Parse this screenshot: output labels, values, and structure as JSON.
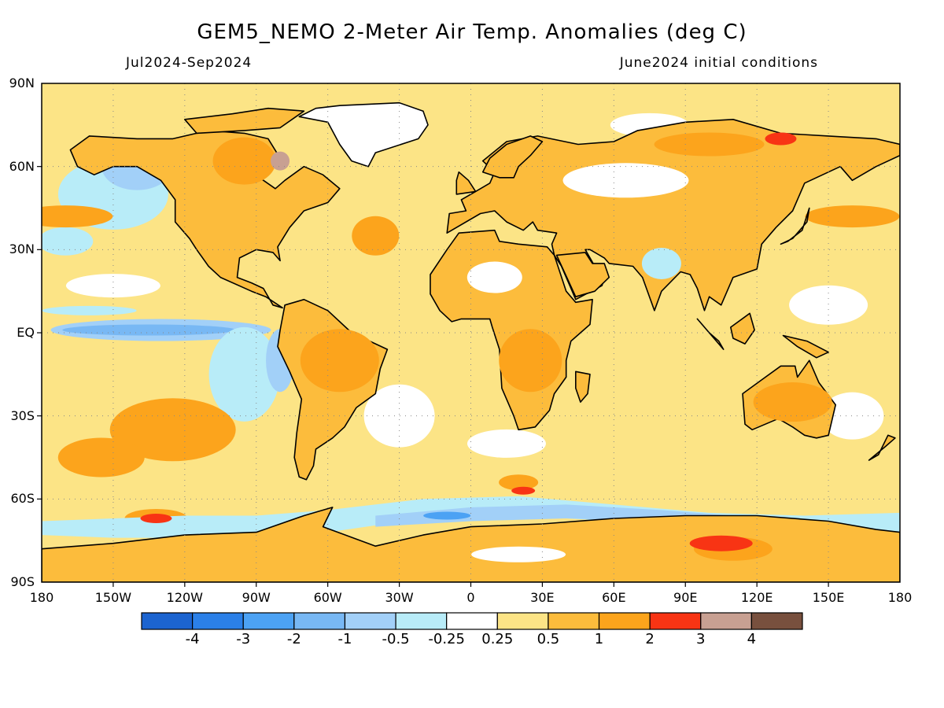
{
  "title": "GEM5_NEMO 2-Meter Air Temp. Anomalies (deg C)",
  "period": "Jul2024-Sep2024",
  "initial_conditions": "June2024 initial conditions",
  "latitude_labels": [
    "90N",
    "60N",
    "30N",
    "EQ",
    "30S",
    "60S",
    "90S"
  ],
  "longitude_labels": [
    "180",
    "150W",
    "120W",
    "90W",
    "60W",
    "30W",
    "0",
    "30E",
    "60E",
    "90E",
    "120E",
    "150E",
    "180"
  ],
  "colorbar": {
    "labels": [
      "-4",
      "-3",
      "-2",
      "-1",
      "-0.5",
      "-0.25",
      "0.25",
      "0.5",
      "1",
      "2",
      "3",
      "4"
    ],
    "colors": [
      "#1c64d0",
      "#2b80e8",
      "#4ca2f4",
      "#78b8f4",
      "#a2d0f8",
      "#b8ecf8",
      "#ffffff",
      "#fce486",
      "#fcbc3c",
      "#fca41c",
      "#f83414",
      "#c8a092",
      "#78503e"
    ]
  },
  "map_colors": {
    "ocean_base": "#fce486",
    "land_base": "#fcbc3c",
    "warm": "#fca41c",
    "hot": "#f83414",
    "neutral": "#ffffff",
    "cool_light": "#b8ecf8",
    "cool": "#a2d0f8",
    "cool_mid": "#78b8f4",
    "cold": "#4ca2f4",
    "coast": "#000000"
  }
}
